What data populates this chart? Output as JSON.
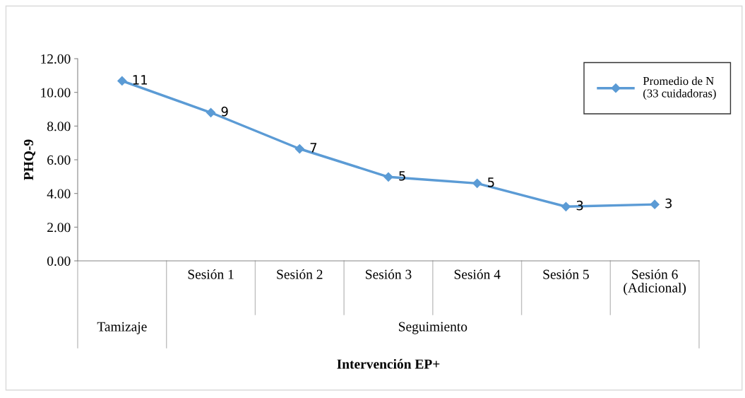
{
  "chart_data": {
    "type": "line",
    "categories": [
      null,
      "Sesión 1",
      "Sesión 2",
      "Sesión 3",
      "Sesión 4",
      "Sesión 5",
      "Sesión 6\n(Adicional)"
    ],
    "series": [
      {
        "name": "Promedio de N\n(33 cuidadoras)",
        "color": "#5b9bd5",
        "values": [
          10.68,
          8.8,
          6.65,
          4.98,
          4.6,
          3.22,
          3.35
        ],
        "value_labels": [
          "11",
          "9",
          "7",
          "5",
          "5",
          "3",
          "3"
        ]
      }
    ],
    "annotations": [
      "Tamizaje",
      "Seguimiento"
    ],
    "xlabel": "Intervención EP+",
    "ylabel": "PHQ-9",
    "ylim": [
      0,
      12
    ],
    "yticks": [
      {
        "value": 0,
        "label": "0.00"
      },
      {
        "value": 2,
        "label": "2.00"
      },
      {
        "value": 4,
        "label": "4.00"
      },
      {
        "value": 6,
        "label": "6.00"
      },
      {
        "value": 8,
        "label": "8.00"
      },
      {
        "value": 10,
        "label": "10.00"
      },
      {
        "value": 12,
        "label": "12.00"
      }
    ],
    "marker": "diamond",
    "line_style": "solid",
    "grid": false,
    "legend": "top right"
  }
}
